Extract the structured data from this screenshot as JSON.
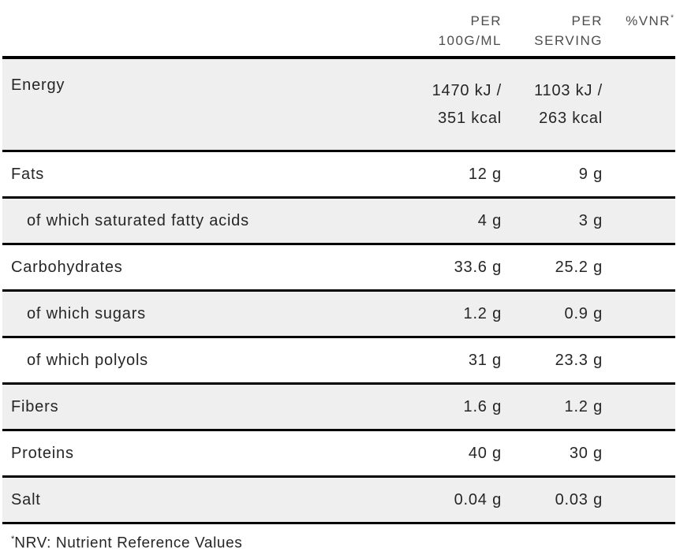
{
  "header": {
    "per_100g": "PER\n100G/ML",
    "per_serving": "PER\nSERVING",
    "vnr": "%VNR",
    "vnr_sup": "*"
  },
  "rows": [
    {
      "label": "Energy",
      "per_100g": "1470 kJ /\n351 kcal",
      "per_serving": "1103 kJ /\n263 kcal",
      "vnr": ""
    },
    {
      "label": "Fats",
      "per_100g": "12 g",
      "per_serving": "9 g",
      "vnr": ""
    },
    {
      "label": "of which saturated fatty acids",
      "per_100g": "4 g",
      "per_serving": "3 g",
      "vnr": ""
    },
    {
      "label": "Carbohydrates",
      "per_100g": "33.6 g",
      "per_serving": "25.2 g",
      "vnr": ""
    },
    {
      "label": "of which sugars",
      "per_100g": "1.2 g",
      "per_serving": "0.9 g",
      "vnr": ""
    },
    {
      "label": "of which polyols",
      "per_100g": "31 g",
      "per_serving": "23.3 g",
      "vnr": ""
    },
    {
      "label": "Fibers",
      "per_100g": "1.6 g",
      "per_serving": "1.2 g",
      "vnr": ""
    },
    {
      "label": "Proteins",
      "per_100g": "40 g",
      "per_serving": "30 g",
      "vnr": ""
    },
    {
      "label": "Salt",
      "per_100g": "0.04 g",
      "per_serving": "0.03 g",
      "vnr": ""
    }
  ],
  "footnote": {
    "sup": "*",
    "text": "NRV: Nutrient Reference Values"
  },
  "colors": {
    "shaded_row": "#efefef",
    "rule_line": "#000000",
    "body_text": "#262626",
    "header_text": "#4d4d4d"
  }
}
